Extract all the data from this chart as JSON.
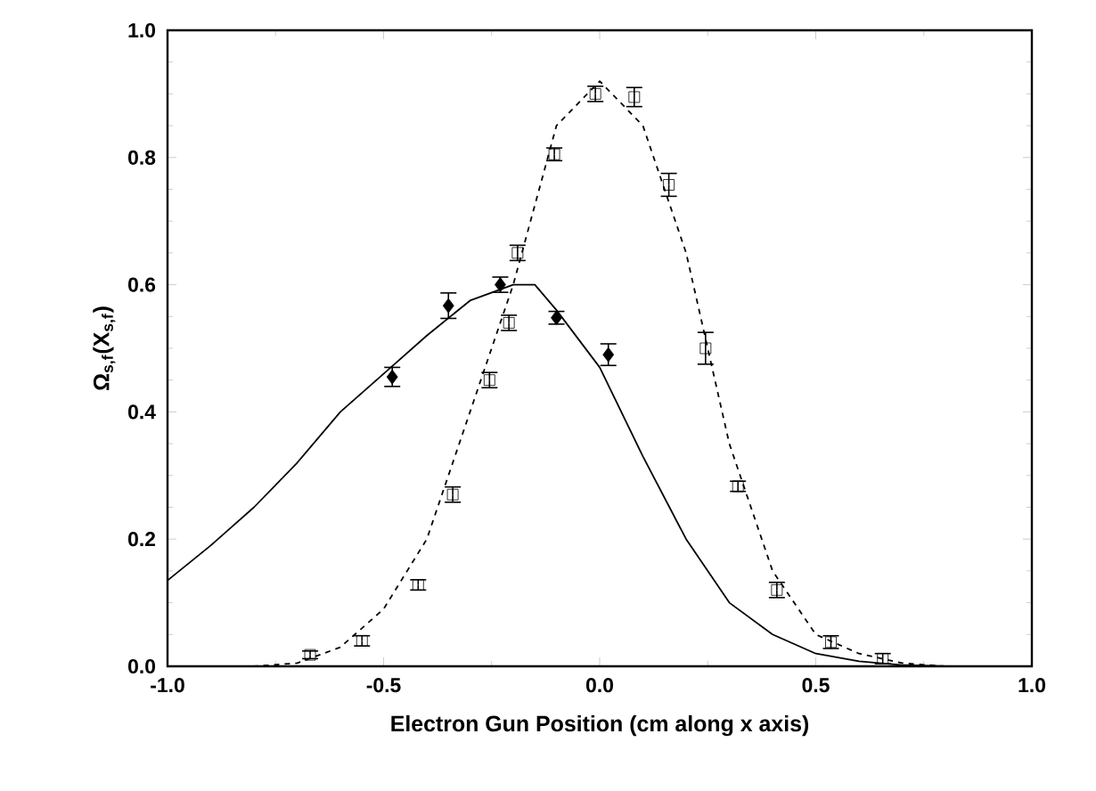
{
  "chart_data": {
    "type": "scatter",
    "xlabel": "Electron Gun Position (cm along x axis)",
    "ylabel": "Ω$_{s,f}$(X$_{s,f}$)",
    "xlim": [
      -1.0,
      1.0
    ],
    "ylim": [
      0.0,
      1.0
    ],
    "xticks": [
      {
        "value": -1.0,
        "label": "-1.0"
      },
      -0.5,
      {
        "value": 0.0,
        "label": "0.0"
      },
      0.5,
      {
        "value": 1.0,
        "label": "1.0"
      }
    ],
    "yticks": [
      {
        "value": 0.0,
        "label": "0.0"
      },
      0.2,
      0.4,
      0.6,
      0.8,
      {
        "value": 1.0,
        "label": "1.0"
      }
    ],
    "series": [
      {
        "type": "line",
        "line_style": "solid",
        "marker": "none",
        "color": "#000000",
        "x": [
          -1.0,
          -0.9,
          -0.8,
          -0.7,
          -0.6,
          -0.5,
          -0.4,
          -0.3,
          -0.2,
          -0.15,
          -0.1,
          0.0,
          0.1,
          0.2,
          0.3,
          0.4,
          0.5,
          0.6,
          0.7,
          0.8
        ],
        "values": [
          0.135,
          0.19,
          0.25,
          0.32,
          0.4,
          0.46,
          0.52,
          0.575,
          0.6,
          0.6,
          0.56,
          0.47,
          0.33,
          0.2,
          0.1,
          0.05,
          0.02,
          0.008,
          0.002,
          0.0
        ]
      },
      {
        "type": "line",
        "line_style": "dashed",
        "marker": "none",
        "color": "#000000",
        "x": [
          -1.0,
          -0.8,
          -0.7,
          -0.6,
          -0.5,
          -0.4,
          -0.3,
          -0.2,
          -0.1,
          0.0,
          0.1,
          0.2,
          0.3,
          0.4,
          0.5,
          0.6,
          0.7,
          0.8
        ],
        "values": [
          0.0,
          0.0,
          0.005,
          0.03,
          0.09,
          0.2,
          0.4,
          0.6,
          0.85,
          0.92,
          0.85,
          0.65,
          0.35,
          0.15,
          0.05,
          0.02,
          0.005,
          0.0
        ]
      },
      {
        "type": "scatter",
        "marker": "diamond",
        "color": "#000000",
        "x": [
          -0.48,
          -0.35,
          -0.23,
          -0.1,
          0.02
        ],
        "values": [
          0.455,
          0.567,
          0.6,
          0.548,
          0.49
        ],
        "errors": [
          0.015,
          0.02,
          0.012,
          0.01,
          0.017
        ]
      },
      {
        "type": "scatter",
        "marker": "square",
        "color": "#000000",
        "x": [
          -0.67,
          -0.55,
          -0.42,
          -0.34,
          -0.255,
          -0.21,
          -0.19,
          -0.105,
          -0.01,
          0.08,
          0.16,
          0.245,
          0.32,
          0.41,
          0.535,
          0.655
        ],
        "values": [
          0.018,
          0.04,
          0.128,
          0.27,
          0.45,
          0.54,
          0.65,
          0.805,
          0.9,
          0.895,
          0.757,
          0.5,
          0.283,
          0.12,
          0.038,
          0.012
        ],
        "errors": [
          0.006,
          0.008,
          0.008,
          0.012,
          0.012,
          0.012,
          0.012,
          0.01,
          0.012,
          0.015,
          0.018,
          0.025,
          0.008,
          0.012,
          0.01,
          0.008
        ]
      }
    ]
  }
}
